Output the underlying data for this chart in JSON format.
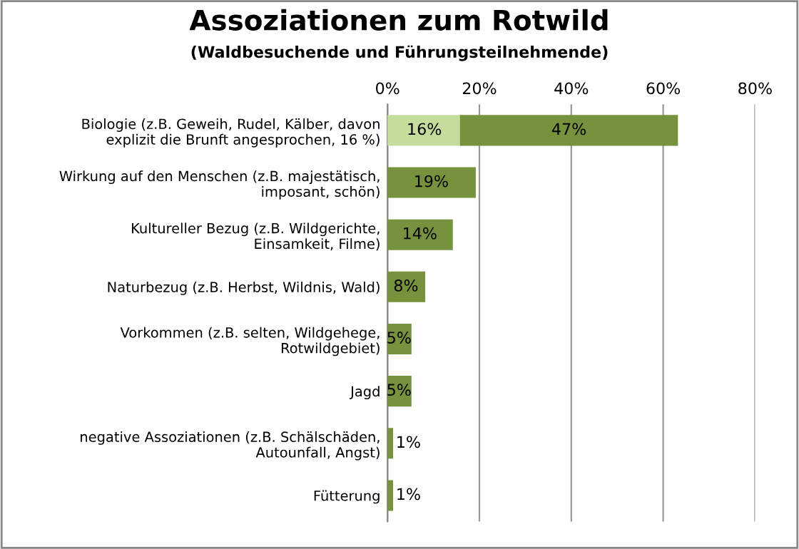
{
  "chart_data": {
    "type": "bar",
    "orientation": "horizontal",
    "stacked": true,
    "title": "Assoziationen zum Rotwild",
    "subtitle": "(Waldbesuchende und Führungsteilnehmende)",
    "categories": [
      "Biologie (z.B. Geweih, Rudel, Kälber, davon explizit die Brunft angesprochen, 16 %)",
      "Wirkung auf den Menschen (z.B. majestätisch, imposant, schön)",
      "Kultureller Bezug (z.B. Wildgerichte, Einsamkeit, Filme)",
      "Naturbezug (z.B. Herbst, Wildnis, Wald)",
      "Vorkommen (z.B. selten, Wildgehege, Rotwildgebiet)",
      "Jagd",
      "negative Assoziationen (z.B. Schälschäden, Autounfall, Angst)",
      "Fütterung"
    ],
    "series": [
      {
        "color": "#c4dc9c",
        "values": [
          16,
          null,
          null,
          null,
          null,
          null,
          null,
          null
        ],
        "value_labels": [
          "16%",
          null,
          null,
          null,
          null,
          null,
          null,
          null
        ]
      },
      {
        "color": "#76923c",
        "values": [
          47,
          19,
          14,
          8,
          5,
          5,
          1,
          1
        ],
        "value_labels": [
          "47%",
          "19%",
          "14%",
          "8%",
          "5%",
          "5%",
          "1%",
          "1%"
        ]
      }
    ],
    "xlim": [
      0,
      80
    ],
    "xticks": [
      {
        "value": 0,
        "label": "0%"
      },
      {
        "value": 20,
        "label": "20%"
      },
      {
        "value": 40,
        "label": "40%"
      },
      {
        "value": 60,
        "label": "60%"
      },
      {
        "value": 80,
        "label": "80%"
      }
    ],
    "grid": "x",
    "legend": false
  }
}
